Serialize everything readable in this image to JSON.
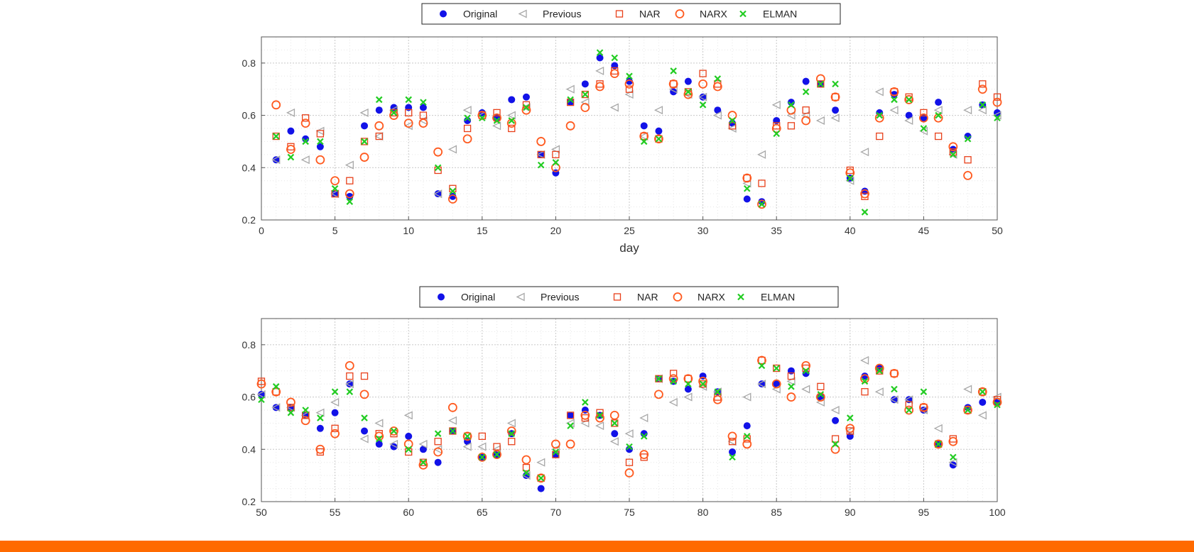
{
  "colors": {
    "original": "#1212e8",
    "previous": "#a8a8a8",
    "nar": "#e8401a",
    "narx": "#ff5a1f",
    "elman": "#22cc22",
    "bottom_bar": "#ff6a00",
    "grid": "#d0d0d0"
  },
  "markers": {
    "Original": "filled-circle",
    "Previous": "left-triangle",
    "NAR": "square",
    "NARX": "circle",
    "ELMAN": "x-cross"
  },
  "chart_data": [
    {
      "type": "scatter",
      "title": "",
      "xlabel": "day",
      "ylabel": "",
      "xlim": [
        0,
        50
      ],
      "ylim": [
        0.2,
        0.9
      ],
      "xticks": [
        "0",
        "5",
        "10",
        "15",
        "20",
        "25",
        "30",
        "35",
        "40",
        "45",
        "50"
      ],
      "yticks": [
        "0.2",
        "0.4",
        "0.6",
        "0.8"
      ],
      "grid": true,
      "legend_position": "top-center",
      "series": [
        {
          "name": "Original",
          "x": [
            1,
            2,
            3,
            4,
            5,
            6,
            7,
            8,
            9,
            10,
            11,
            12,
            13,
            14,
            15,
            16,
            17,
            18,
            19,
            20,
            21,
            22,
            23,
            24,
            25,
            26,
            27,
            28,
            29,
            30,
            31,
            32,
            33,
            34,
            35,
            36,
            37,
            38,
            39,
            40,
            41,
            42,
            43,
            44,
            45,
            46,
            47,
            48,
            49,
            50
          ],
          "y": [
            0.43,
            0.54,
            0.51,
            0.48,
            0.3,
            0.29,
            0.56,
            0.62,
            0.63,
            0.63,
            0.63,
            0.3,
            0.29,
            0.58,
            0.61,
            0.59,
            0.66,
            0.67,
            0.45,
            0.38,
            0.65,
            0.72,
            0.82,
            0.79,
            0.73,
            0.56,
            0.54,
            0.69,
            0.73,
            0.67,
            0.62,
            0.57,
            0.28,
            0.27,
            0.58,
            0.65,
            0.73,
            0.72,
            0.62,
            0.36,
            0.31,
            0.61,
            0.68,
            0.6,
            0.59,
            0.65,
            0.47,
            0.52,
            0.64,
            0.61
          ]
        },
        {
          "name": "Previous",
          "x": [
            1,
            2,
            3,
            4,
            5,
            6,
            7,
            8,
            9,
            10,
            11,
            12,
            13,
            14,
            15,
            16,
            17,
            18,
            19,
            20,
            21,
            22,
            23,
            24,
            25,
            26,
            27,
            28,
            29,
            30,
            31,
            32,
            33,
            34,
            35,
            36,
            37,
            38,
            39,
            40,
            41,
            42,
            43,
            44,
            45,
            46,
            47,
            48,
            49,
            50
          ],
          "y": [
            0.43,
            0.61,
            0.43,
            0.54,
            0.3,
            0.41,
            0.61,
            0.52,
            0.62,
            0.56,
            0.58,
            0.3,
            0.47,
            0.62,
            0.6,
            0.56,
            0.6,
            0.63,
            0.45,
            0.47,
            0.7,
            0.65,
            0.77,
            0.63,
            0.68,
            0.52,
            0.62,
            0.7,
            0.68,
            0.67,
            0.6,
            0.55,
            0.34,
            0.45,
            0.64,
            0.6,
            0.6,
            0.58,
            0.59,
            0.35,
            0.46,
            0.69,
            0.62,
            0.58,
            0.54,
            0.62,
            0.45,
            0.62,
            0.62,
            0.6
          ]
        },
        {
          "name": "NAR",
          "x": [
            1,
            2,
            3,
            4,
            5,
            6,
            7,
            8,
            9,
            10,
            11,
            12,
            13,
            14,
            15,
            16,
            17,
            18,
            19,
            20,
            21,
            22,
            23,
            24,
            25,
            26,
            27,
            28,
            29,
            30,
            31,
            32,
            33,
            34,
            35,
            36,
            37,
            38,
            39,
            40,
            41,
            42,
            43,
            44,
            45,
            46,
            47,
            48,
            49,
            50
          ],
          "y": [
            0.52,
            0.48,
            0.59,
            0.53,
            0.3,
            0.35,
            0.5,
            0.52,
            0.61,
            0.61,
            0.6,
            0.39,
            0.32,
            0.55,
            0.6,
            0.61,
            0.55,
            0.64,
            0.45,
            0.45,
            0.65,
            0.68,
            0.72,
            0.77,
            0.7,
            0.52,
            0.51,
            0.72,
            0.69,
            0.76,
            0.72,
            0.56,
            0.36,
            0.34,
            0.56,
            0.56,
            0.62,
            0.72,
            0.67,
            0.39,
            0.29,
            0.52,
            0.69,
            0.67,
            0.61,
            0.52,
            0.46,
            0.43,
            0.72,
            0.67
          ]
        },
        {
          "name": "NARX",
          "x": [
            1,
            2,
            3,
            4,
            5,
            6,
            7,
            8,
            9,
            10,
            11,
            12,
            13,
            14,
            15,
            16,
            17,
            18,
            19,
            20,
            21,
            22,
            23,
            24,
            25,
            26,
            27,
            28,
            29,
            30,
            31,
            32,
            33,
            34,
            35,
            36,
            37,
            38,
            39,
            40,
            41,
            42,
            43,
            44,
            45,
            46,
            47,
            48,
            49,
            50
          ],
          "y": [
            0.64,
            0.47,
            0.57,
            0.43,
            0.35,
            0.3,
            0.44,
            0.56,
            0.6,
            0.57,
            0.57,
            0.46,
            0.28,
            0.51,
            0.6,
            0.59,
            0.57,
            0.62,
            0.5,
            0.4,
            0.56,
            0.63,
            0.71,
            0.76,
            0.72,
            0.52,
            0.51,
            0.72,
            0.68,
            0.72,
            0.71,
            0.6,
            0.36,
            0.26,
            0.55,
            0.62,
            0.58,
            0.74,
            0.67,
            0.38,
            0.3,
            0.59,
            0.69,
            0.66,
            0.59,
            0.59,
            0.48,
            0.37,
            0.7,
            0.65
          ]
        },
        {
          "name": "ELMAN",
          "x": [
            1,
            2,
            3,
            4,
            5,
            6,
            7,
            8,
            9,
            10,
            11,
            12,
            13,
            14,
            15,
            16,
            17,
            18,
            19,
            20,
            21,
            22,
            23,
            24,
            25,
            26,
            27,
            28,
            29,
            30,
            31,
            32,
            33,
            34,
            35,
            36,
            37,
            38,
            39,
            40,
            41,
            42,
            43,
            44,
            45,
            46,
            47,
            48,
            49,
            50
          ],
          "y": [
            0.52,
            0.44,
            0.5,
            0.5,
            0.32,
            0.27,
            0.5,
            0.66,
            0.61,
            0.66,
            0.65,
            0.4,
            0.31,
            0.59,
            0.59,
            0.58,
            0.58,
            0.63,
            0.41,
            0.42,
            0.66,
            0.68,
            0.84,
            0.82,
            0.75,
            0.5,
            0.51,
            0.77,
            0.69,
            0.64,
            0.74,
            0.58,
            0.32,
            0.26,
            0.53,
            0.64,
            0.69,
            0.72,
            0.72,
            0.36,
            0.23,
            0.6,
            0.66,
            0.66,
            0.55,
            0.6,
            0.45,
            0.51,
            0.64,
            0.59
          ]
        }
      ]
    },
    {
      "type": "scatter",
      "title": "",
      "xlabel": "",
      "ylabel": "",
      "xlim": [
        50,
        100
      ],
      "ylim": [
        0.2,
        0.9
      ],
      "xticks": [
        "50",
        "55",
        "60",
        "65",
        "70",
        "75",
        "80",
        "85",
        "90",
        "95",
        "100"
      ],
      "yticks": [
        "0.2",
        "0.4",
        "0.6",
        "0.8"
      ],
      "grid": true,
      "legend_position": "top-center",
      "series": [
        {
          "name": "Original",
          "x": [
            50,
            51,
            52,
            53,
            54,
            55,
            56,
            57,
            58,
            59,
            60,
            61,
            62,
            63,
            64,
            65,
            66,
            67,
            68,
            69,
            70,
            71,
            72,
            73,
            74,
            75,
            76,
            77,
            78,
            79,
            80,
            81,
            82,
            83,
            84,
            85,
            86,
            87,
            88,
            89,
            90,
            91,
            92,
            93,
            94,
            95,
            96,
            97,
            98,
            99,
            100
          ],
          "y": [
            0.61,
            0.56,
            0.56,
            0.53,
            0.48,
            0.54,
            0.65,
            0.47,
            0.42,
            0.41,
            0.45,
            0.4,
            0.35,
            0.47,
            0.43,
            0.37,
            0.38,
            0.46,
            0.3,
            0.25,
            0.38,
            0.53,
            0.55,
            0.53,
            0.46,
            0.4,
            0.46,
            0.67,
            0.66,
            0.63,
            0.68,
            0.62,
            0.39,
            0.49,
            0.65,
            0.65,
            0.7,
            0.69,
            0.6,
            0.51,
            0.45,
            0.68,
            0.71,
            0.59,
            0.59,
            0.55,
            0.42,
            0.34,
            0.56,
            0.58,
            0.58
          ]
        },
        {
          "name": "Previous",
          "x": [
            50,
            51,
            52,
            53,
            54,
            55,
            56,
            57,
            58,
            59,
            60,
            61,
            62,
            63,
            64,
            65,
            66,
            67,
            68,
            69,
            70,
            71,
            72,
            73,
            74,
            75,
            76,
            77,
            78,
            79,
            80,
            81,
            82,
            83,
            84,
            85,
            86,
            87,
            88,
            89,
            90,
            91,
            92,
            93,
            94,
            95,
            96,
            97,
            98,
            99,
            100
          ],
          "y": [
            0.61,
            0.56,
            0.56,
            0.53,
            0.54,
            0.58,
            0.65,
            0.44,
            0.5,
            0.42,
            0.53,
            0.42,
            0.4,
            0.51,
            0.41,
            0.41,
            0.4,
            0.5,
            0.3,
            0.35,
            0.4,
            0.5,
            0.5,
            0.49,
            0.43,
            0.46,
            0.52,
            0.67,
            0.58,
            0.6,
            0.64,
            0.62,
            0.43,
            0.6,
            0.65,
            0.63,
            0.66,
            0.63,
            0.58,
            0.55,
            0.47,
            0.74,
            0.62,
            0.59,
            0.59,
            0.55,
            0.48,
            0.35,
            0.63,
            0.53,
            0.6
          ]
        },
        {
          "name": "NAR",
          "x": [
            50,
            51,
            52,
            53,
            54,
            55,
            56,
            57,
            58,
            59,
            60,
            61,
            62,
            63,
            64,
            65,
            66,
            67,
            68,
            69,
            70,
            71,
            72,
            73,
            74,
            75,
            76,
            77,
            78,
            79,
            80,
            81,
            82,
            83,
            84,
            85,
            86,
            87,
            88,
            89,
            90,
            91,
            92,
            93,
            94,
            95,
            96,
            97,
            98,
            99,
            100
          ],
          "y": [
            0.66,
            0.62,
            0.56,
            0.53,
            0.39,
            0.48,
            0.68,
            0.68,
            0.46,
            0.46,
            0.39,
            0.35,
            0.43,
            0.47,
            0.45,
            0.45,
            0.41,
            0.43,
            0.33,
            0.29,
            0.38,
            0.53,
            0.52,
            0.54,
            0.5,
            0.35,
            0.37,
            0.67,
            0.69,
            0.67,
            0.65,
            0.6,
            0.43,
            0.44,
            0.74,
            0.71,
            0.68,
            0.71,
            0.64,
            0.44,
            0.47,
            0.62,
            0.7,
            0.69,
            0.57,
            0.56,
            0.42,
            0.44,
            0.55,
            0.62,
            0.59
          ]
        },
        {
          "name": "NARX",
          "x": [
            50,
            51,
            52,
            53,
            54,
            55,
            56,
            57,
            58,
            59,
            60,
            61,
            62,
            63,
            64,
            65,
            66,
            67,
            68,
            69,
            70,
            71,
            72,
            73,
            74,
            75,
            76,
            77,
            78,
            79,
            80,
            81,
            82,
            83,
            84,
            85,
            86,
            87,
            88,
            89,
            90,
            91,
            92,
            93,
            94,
            95,
            96,
            97,
            98,
            99,
            100
          ],
          "y": [
            0.65,
            0.62,
            0.58,
            0.51,
            0.4,
            0.46,
            0.72,
            0.61,
            0.45,
            0.47,
            0.42,
            0.34,
            0.39,
            0.56,
            0.45,
            0.37,
            0.38,
            0.47,
            0.36,
            0.29,
            0.42,
            0.42,
            0.53,
            0.52,
            0.53,
            0.31,
            0.38,
            0.61,
            0.67,
            0.67,
            0.66,
            0.59,
            0.45,
            0.42,
            0.74,
            0.65,
            0.6,
            0.72,
            0.6,
            0.4,
            0.48,
            0.67,
            0.71,
            0.69,
            0.55,
            0.56,
            0.42,
            0.43,
            0.55,
            0.62,
            0.58
          ]
        },
        {
          "name": "ELMAN",
          "x": [
            50,
            51,
            52,
            53,
            54,
            55,
            56,
            57,
            58,
            59,
            60,
            61,
            62,
            63,
            64,
            65,
            66,
            67,
            68,
            69,
            70,
            71,
            72,
            73,
            74,
            75,
            76,
            77,
            78,
            79,
            80,
            81,
            82,
            83,
            84,
            85,
            86,
            87,
            88,
            89,
            90,
            91,
            92,
            93,
            94,
            95,
            96,
            97,
            98,
            99,
            100
          ],
          "y": [
            0.59,
            0.64,
            0.54,
            0.55,
            0.52,
            0.62,
            0.62,
            0.52,
            0.44,
            0.47,
            0.4,
            0.35,
            0.46,
            0.47,
            0.45,
            0.37,
            0.38,
            0.46,
            0.31,
            0.29,
            0.39,
            0.49,
            0.58,
            0.53,
            0.5,
            0.41,
            0.45,
            0.67,
            0.66,
            0.65,
            0.65,
            0.62,
            0.37,
            0.45,
            0.72,
            0.71,
            0.64,
            0.7,
            0.61,
            0.42,
            0.52,
            0.66,
            0.7,
            0.63,
            0.55,
            0.62,
            0.42,
            0.37,
            0.55,
            0.62,
            0.57
          ]
        }
      ]
    }
  ]
}
